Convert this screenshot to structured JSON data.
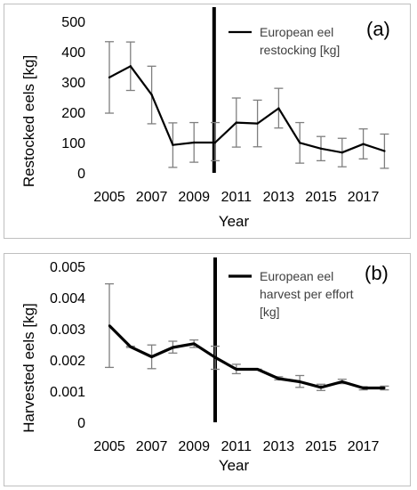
{
  "figure": {
    "colors": {
      "series": "#000000",
      "error_bar": "#7f7f7f",
      "divider": "#000000",
      "text": "#000000",
      "legend_text": "#404040",
      "frame": "#bfbfbf"
    }
  },
  "chart_data": [
    {
      "type": "line",
      "panel_label": "(a)",
      "xlabel": "Year",
      "ylabel": "Restocked eels [kg]",
      "x": [
        2005,
        2006,
        2007,
        2008,
        2009,
        2010,
        2011,
        2012,
        2013,
        2014,
        2015,
        2016,
        2017,
        2018
      ],
      "x_tick_labels": [
        "2005",
        "2007",
        "2009",
        "2011",
        "2013",
        "2015",
        "2017"
      ],
      "ylim": [
        0,
        500
      ],
      "y_tick_labels": [
        "0",
        "100",
        "200",
        "300",
        "400",
        "500"
      ],
      "divider_x": 2009.95,
      "grid": false,
      "legend_position": "top-right",
      "series": [
        {
          "name": "European eel restocking [kg]",
          "name_lines": [
            "European eel",
            "restocking [kg]"
          ],
          "values": [
            315,
            352,
            258,
            92,
            100,
            100,
            166,
            163,
            213,
            99,
            80,
            67,
            95,
            72
          ],
          "error_low": [
            197,
            272,
            162,
            18,
            35,
            40,
            85,
            86,
            148,
            32,
            40,
            20,
            46,
            15
          ],
          "error_high": [
            433,
            432,
            352,
            165,
            166,
            166,
            247,
            240,
            279,
            166,
            120,
            114,
            145,
            128
          ]
        }
      ]
    },
    {
      "type": "line",
      "panel_label": "(b)",
      "xlabel": "Year",
      "ylabel": "Harvested eels [kg]",
      "x": [
        2005,
        2006,
        2007,
        2008,
        2009,
        2010,
        2011,
        2012,
        2013,
        2014,
        2015,
        2016,
        2017,
        2018
      ],
      "x_tick_labels": [
        "2005",
        "2007",
        "2009",
        "2011",
        "2013",
        "2015",
        "2017"
      ],
      "ylim": [
        0,
        0.005
      ],
      "y_tick_labels": [
        "0",
        "0.001",
        "0.002",
        "0.003",
        "0.004",
        "0.005"
      ],
      "divider_x": 2010,
      "grid": false,
      "legend_position": "top-right",
      "series": [
        {
          "name": "European eel harvest per effort [kg]",
          "name_lines": [
            "European eel",
            "harvest per effort",
            "[kg]"
          ],
          "values": [
            0.0031,
            0.00242,
            0.0021,
            0.0024,
            0.00252,
            0.00208,
            0.0017,
            0.0017,
            0.0014,
            0.0013,
            0.00112,
            0.0013,
            0.0011,
            0.0011
          ],
          "error_low": [
            0.00176,
            0.0024,
            0.00172,
            0.00222,
            0.0024,
            0.0017,
            0.00156,
            0.0017,
            0.00136,
            0.00112,
            0.00102,
            0.00124,
            0.00104,
            0.00104
          ],
          "error_high": [
            0.00444,
            0.00244,
            0.00248,
            0.0026,
            0.00264,
            0.00244,
            0.00186,
            0.0017,
            0.00146,
            0.0015,
            0.00122,
            0.00138,
            0.00114,
            0.00116
          ]
        }
      ]
    }
  ]
}
